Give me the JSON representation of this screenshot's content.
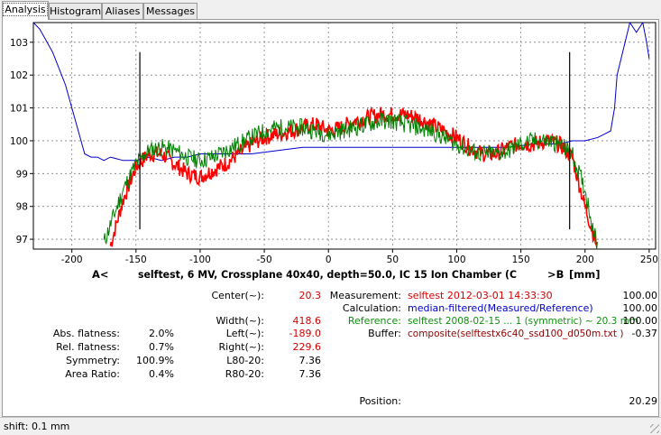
{
  "tabs": [
    {
      "label": "Analysis",
      "active": true
    },
    {
      "label": "Histogram",
      "active": false
    },
    {
      "label": "Aliases",
      "active": false
    },
    {
      "label": "Messages",
      "active": false
    }
  ],
  "chart_data": {
    "type": "line",
    "title": "selftest, 6 MV, Crossplane 40x40, depth=50.0, IC 15 Ion Chamber (C",
    "xlabel_left": "A<",
    "xlabel_right": ">B",
    "xunit": "[mm]",
    "xlim": [
      -230,
      255
    ],
    "ylim": [
      96.7,
      103.6
    ],
    "xticks": [
      -200,
      -150,
      -100,
      -50,
      0,
      50,
      100,
      150,
      200,
      250
    ],
    "yticks": [
      97,
      98,
      99,
      100,
      101,
      102,
      103
    ],
    "grid": true,
    "markers_x": [
      -147,
      188
    ],
    "colors": {
      "measured": "#ff0000",
      "reference": "#008000",
      "ratio": "#0000cc",
      "marker": "#000000"
    },
    "series": [
      {
        "key": "measured",
        "x": [
          -170,
          -160,
          -150,
          -140,
          -130,
          -120,
          -110,
          -100,
          -90,
          -80,
          -70,
          -60,
          -50,
          -40,
          -30,
          -20,
          -10,
          0,
          10,
          20,
          30,
          40,
          50,
          60,
          70,
          80,
          90,
          100,
          110,
          120,
          130,
          140,
          150,
          160,
          170,
          180,
          190,
          200,
          210
        ],
        "y": [
          96.8,
          98.2,
          99.2,
          99.6,
          99.6,
          99.3,
          99.0,
          98.9,
          99.1,
          99.3,
          99.6,
          99.9,
          100.1,
          100.2,
          100.3,
          100.4,
          100.5,
          100.3,
          100.4,
          100.6,
          100.7,
          100.8,
          100.8,
          100.8,
          100.7,
          100.5,
          100.3,
          100.1,
          99.8,
          99.6,
          99.6,
          99.8,
          99.9,
          99.9,
          100.0,
          99.9,
          99.5,
          98.0,
          96.7
        ]
      },
      {
        "key": "reference",
        "x": [
          -175,
          -160,
          -150,
          -140,
          -130,
          -120,
          -110,
          -100,
          -90,
          -80,
          -70,
          -60,
          -50,
          -40,
          -30,
          -20,
          -10,
          0,
          10,
          20,
          30,
          40,
          50,
          60,
          70,
          80,
          90,
          100,
          110,
          120,
          130,
          140,
          150,
          160,
          170,
          180,
          190,
          200,
          210
        ],
        "y": [
          96.9,
          98.5,
          99.3,
          99.7,
          99.8,
          99.7,
          99.5,
          99.4,
          99.5,
          99.7,
          99.9,
          100.1,
          100.3,
          100.4,
          100.4,
          100.4,
          100.3,
          100.2,
          100.3,
          100.4,
          100.5,
          100.6,
          100.6,
          100.5,
          100.4,
          100.3,
          100.1,
          99.9,
          99.7,
          99.6,
          99.6,
          99.7,
          99.9,
          100.0,
          100.0,
          99.9,
          99.6,
          98.5,
          96.7
        ]
      },
      {
        "key": "ratio",
        "x": [
          -230,
          -225,
          -215,
          -210,
          -205,
          -200,
          -195,
          -190,
          -185,
          -180,
          -175,
          -170,
          -160,
          -150,
          -140,
          -130,
          -120,
          -110,
          -100,
          -80,
          -60,
          -40,
          -20,
          0,
          20,
          40,
          60,
          80,
          100,
          120,
          140,
          160,
          170,
          180,
          190,
          200,
          210,
          215,
          220,
          223,
          225,
          235,
          240,
          245,
          248,
          250
        ],
        "y": [
          103.6,
          103.4,
          102.7,
          102.2,
          101.7,
          101.0,
          100.3,
          99.6,
          99.5,
          99.5,
          99.4,
          99.5,
          99.4,
          99.4,
          99.5,
          99.4,
          99.5,
          99.5,
          99.6,
          99.6,
          99.6,
          99.7,
          99.8,
          99.8,
          99.8,
          99.8,
          99.8,
          99.8,
          99.8,
          99.8,
          99.8,
          99.9,
          99.9,
          99.9,
          100.0,
          100.0,
          100.1,
          100.2,
          100.3,
          101.0,
          102.0,
          103.6,
          103.3,
          103.6,
          103.0,
          102.5
        ]
      }
    ]
  },
  "stats_left": {
    "rows": [
      {
        "label": "Abs. flatness:",
        "value": "2.0%"
      },
      {
        "label": "Rel. flatness:",
        "value": "0.7%"
      },
      {
        "label": "Symmetry:",
        "value": "100.9%"
      },
      {
        "label": "Area Ratio:",
        "value": "0.4%"
      }
    ]
  },
  "stats_mid": {
    "center_label": "Center(~):",
    "center_value": "20.3",
    "width_label": "Width(~):",
    "width_value": "418.6",
    "left_label": "Left(~):",
    "left_value": "-189.0",
    "right_label": "Right(~):",
    "right_value": "229.6",
    "l8020_label": "L80-20:",
    "l8020_value": "7.36",
    "r8020_label": "R80-20:",
    "r8020_value": "7.36"
  },
  "stats_right": {
    "measurement_label": "Measurement:",
    "measurement_value": "selftest 2012-03-01 14:33:30",
    "measurement_num": "100.00",
    "calculation_label": "Calculation:",
    "calculation_value": "median-filtered(Measured/Reference)",
    "calculation_num": "100.00",
    "reference_label": "Reference:",
    "reference_value": "selftest 2008-02-15   ... 1 (symmetric) ~ 20.3 mm",
    "reference_num": "100.00",
    "buffer_label": "Buffer:",
    "buffer_value": "composite(selftestx6c40_ssd100_d050m.txt )",
    "buffer_num": "-0.37",
    "position_label": "Position:",
    "position_value": "20.29"
  },
  "status": {
    "text": "shift: 0.1 mm"
  }
}
